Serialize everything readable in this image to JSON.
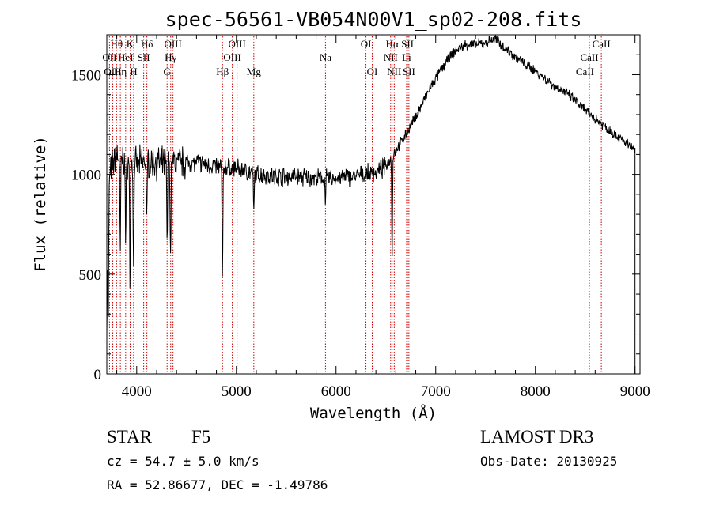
{
  "chart_data": {
    "type": "line",
    "title": "spec-56561-VB054N00V1_sp02-208.fits",
    "xlabel": "Wavelength (Å)",
    "ylabel": "Flux (relative)",
    "xlim": [
      3700,
      9050
    ],
    "ylim": [
      0,
      1700
    ],
    "xticks": [
      4000,
      5000,
      6000,
      7000,
      8000,
      9000
    ],
    "yticks": [
      0,
      500,
      1000,
      1500
    ],
    "xtick_labels": [
      "4000",
      "5000",
      "6000",
      "7000",
      "8000",
      "9000"
    ],
    "ytick_labels": [
      "0",
      "500",
      "1000",
      "1500"
    ],
    "continuum": {
      "x": [
        3700,
        3730,
        3760,
        3800,
        3850,
        3900,
        4000,
        4100,
        4200,
        4300,
        4400,
        4600,
        4800,
        5000,
        5200,
        5400,
        5600,
        5800,
        6000,
        6200,
        6400,
        6500,
        6600,
        6700,
        6800,
        6900,
        7000,
        7100,
        7200,
        7300,
        7400,
        7500,
        7600,
        7700,
        7800,
        7900,
        8000,
        8100,
        8200,
        8300,
        8400,
        8500,
        8600,
        8700,
        8800,
        8900,
        9000
      ],
      "flux": [
        850,
        1000,
        1050,
        1100,
        1080,
        1060,
        1050,
        1070,
        1060,
        1050,
        1060,
        1060,
        1040,
        1030,
        1000,
        990,
        990,
        980,
        980,
        990,
        1010,
        1040,
        1120,
        1200,
        1290,
        1390,
        1480,
        1560,
        1620,
        1650,
        1650,
        1660,
        1680,
        1630,
        1590,
        1550,
        1520,
        1480,
        1440,
        1410,
        1370,
        1320,
        1280,
        1240,
        1200,
        1160,
        1120
      ]
    },
    "absorption": [
      {
        "x": 3715,
        "depth": 700
      },
      {
        "x": 3835,
        "depth": 500
      },
      {
        "x": 3890,
        "depth": 450
      },
      {
        "x": 3933,
        "depth": 600
      },
      {
        "x": 3968,
        "depth": 550
      },
      {
        "x": 4101,
        "depth": 350
      },
      {
        "x": 4305,
        "depth": 400
      },
      {
        "x": 4340,
        "depth": 500
      },
      {
        "x": 4861,
        "depth": 600
      },
      {
        "x": 5175,
        "depth": 200
      },
      {
        "x": 5893,
        "depth": 100
      },
      {
        "x": 6563,
        "depth": 500
      }
    ],
    "reference_lines": [
      {
        "label": "Hθ",
        "x": 3798,
        "row": 0
      },
      {
        "label": "OII",
        "x": 3727,
        "row": 1
      },
      {
        "label": "OIII",
        "x": 3760,
        "row": 2
      },
      {
        "label": "Hη",
        "x": 3836,
        "row": 2
      },
      {
        "label": "K",
        "x": 3934,
        "row": 0
      },
      {
        "label": "HeI",
        "x": 3889,
        "row": 1
      },
      {
        "label": "SII",
        "x": 4070,
        "row": 1
      },
      {
        "label": "H",
        "x": 3969,
        "row": 2
      },
      {
        "label": "Hδ",
        "x": 4102,
        "row": 0
      },
      {
        "label": "OIII",
        "x": 4364,
        "row": 0
      },
      {
        "label": "Hγ",
        "x": 4341,
        "row": 1
      },
      {
        "label": "G",
        "x": 4305,
        "row": 2
      },
      {
        "label": "Hβ",
        "x": 4861,
        "row": 2
      },
      {
        "label": "OIII",
        "x": 5007,
        "row": 0
      },
      {
        "label": "OIII",
        "x": 4959,
        "row": 1
      },
      {
        "label": "Mg",
        "x": 5175,
        "row": 2
      },
      {
        "label": "Na",
        "x": 5894,
        "row": 1
      },
      {
        "label": "OI",
        "x": 6300,
        "row": 0
      },
      {
        "label": "OI",
        "x": 6363,
        "row": 2
      },
      {
        "label": "Hα",
        "x": 6563,
        "row": 0
      },
      {
        "label": "NII",
        "x": 6548,
        "row": 1
      },
      {
        "label": "NII",
        "x": 6584,
        "row": 2
      },
      {
        "label": "SII",
        "x": 6717,
        "row": 0
      },
      {
        "label": "Li",
        "x": 6708,
        "row": 1
      },
      {
        "label": "SII",
        "x": 6731,
        "row": 2
      },
      {
        "label": "CaII",
        "x": 8662,
        "row": 0
      },
      {
        "label": "CaII",
        "x": 8542,
        "row": 1
      },
      {
        "label": "CaII",
        "x": 8498,
        "row": 2
      }
    ],
    "reference_line_color": "#cc0000"
  },
  "info": {
    "object_class": "STAR",
    "subclass": "F5",
    "survey": "LAMOST DR3",
    "redshift": "cz = 54.7 ± 5.0 km/s",
    "obs_date": "Obs-Date: 20130925",
    "coords": "RA =  52.86677, DEC =  -1.49786"
  }
}
